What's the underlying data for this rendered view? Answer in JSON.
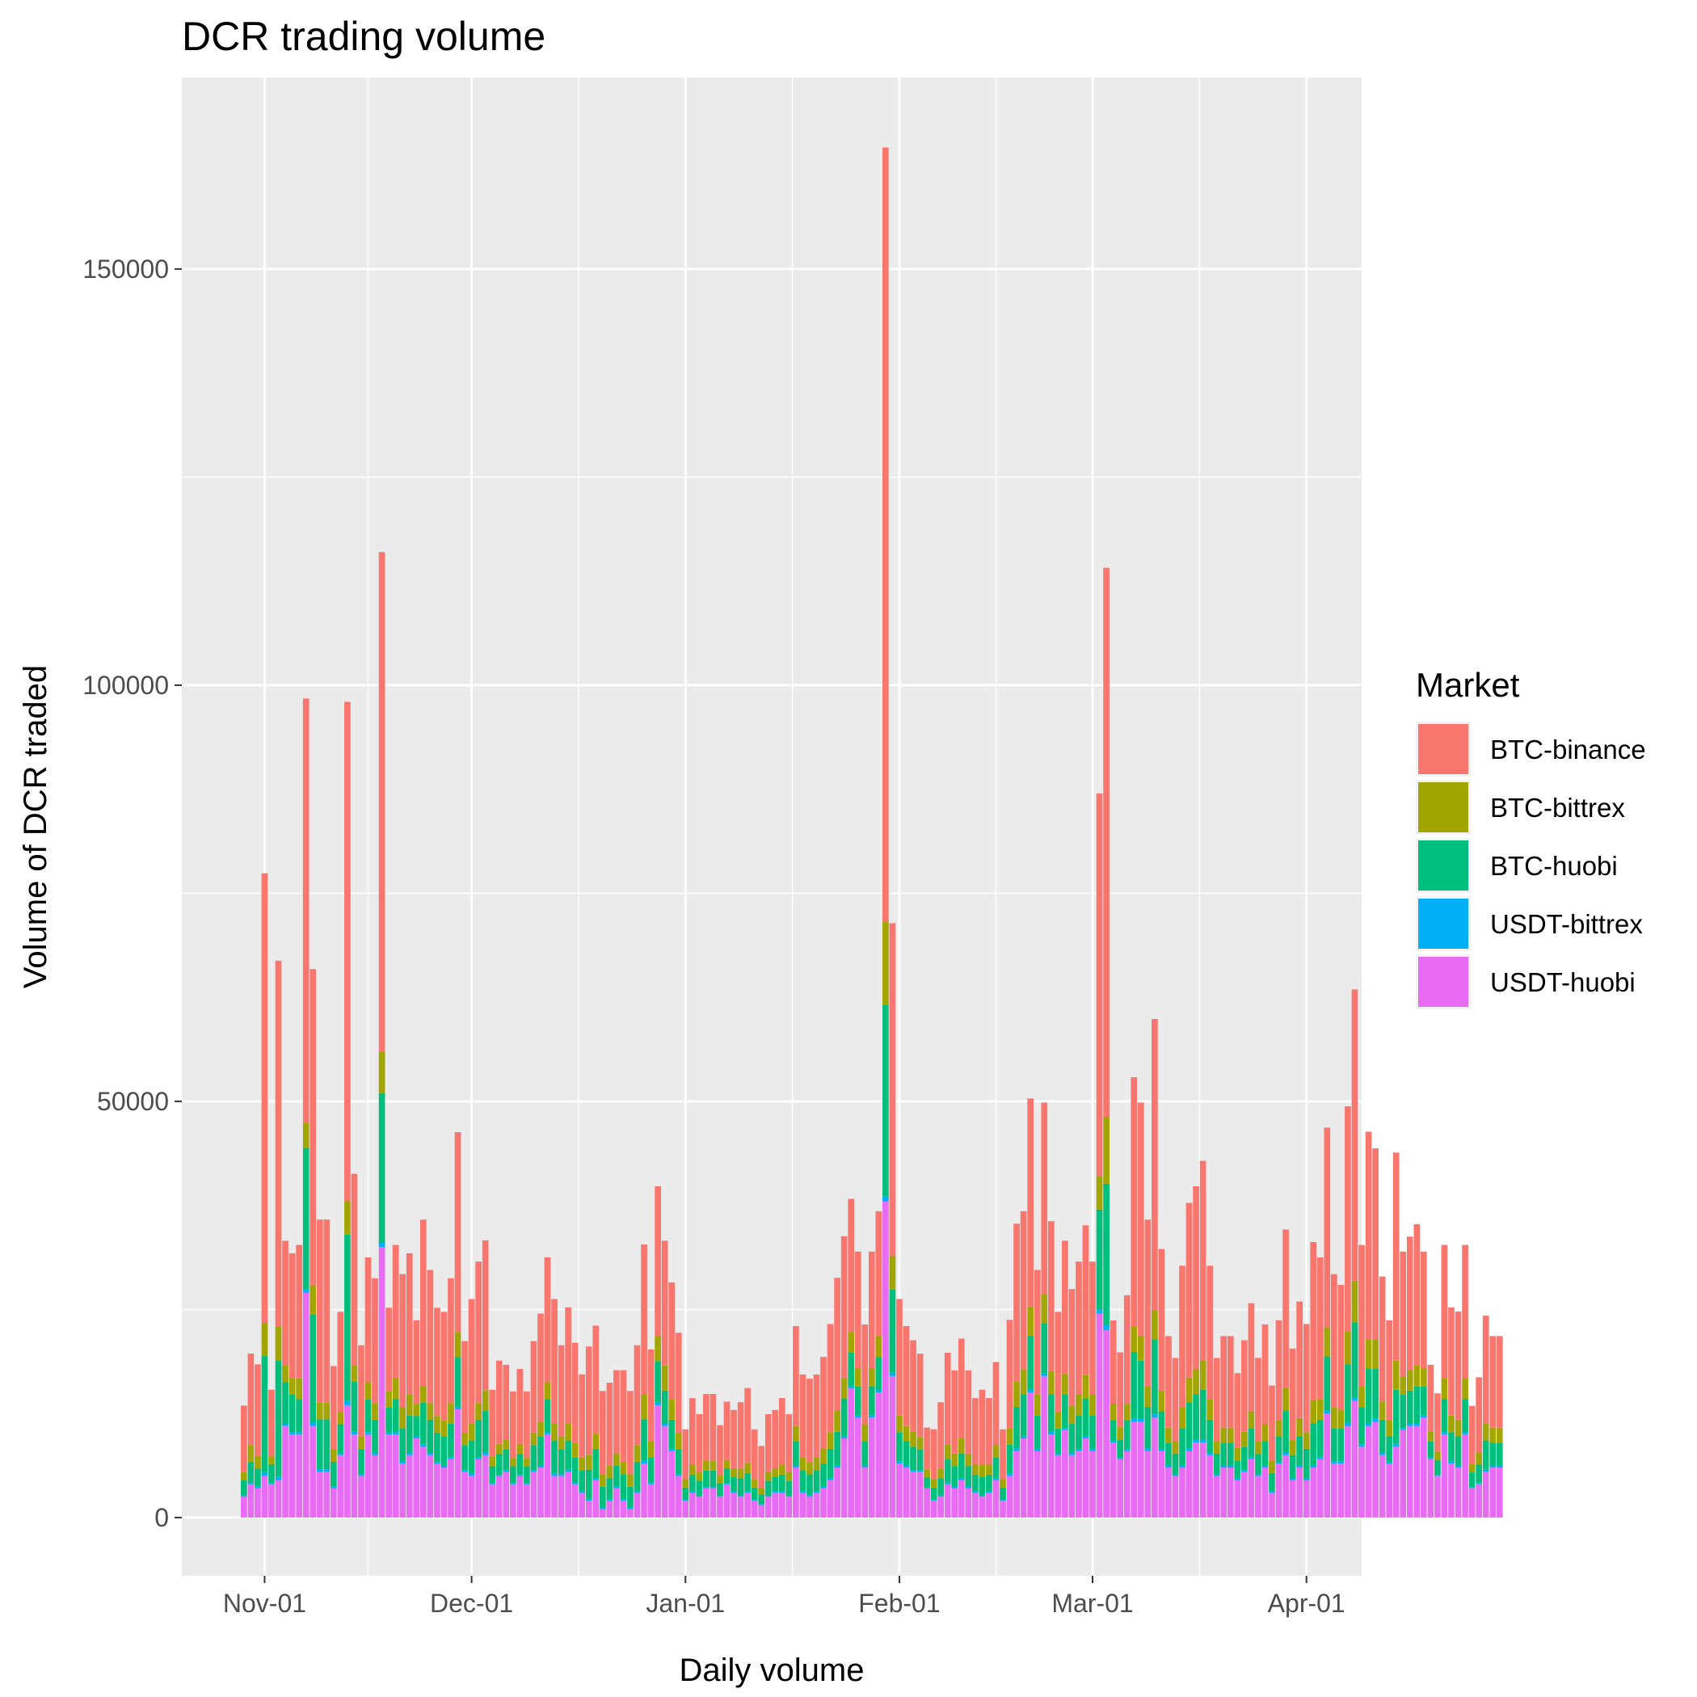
{
  "chart_data": {
    "type": "bar",
    "stacked": true,
    "title": "DCR trading volume",
    "xlabel": "Daily volume",
    "ylabel": "Volume of DCR traded",
    "x_range": [
      "2018-10-20",
      "2019-04-09"
    ],
    "ylim": [
      -7000,
      173000
    ],
    "y_ticks": [
      0,
      50000,
      100000,
      150000
    ],
    "y_tick_labels": [
      "0",
      "50000",
      "100000",
      "150000"
    ],
    "x_ticks": [
      "2018-11-01",
      "2018-12-01",
      "2019-01-01",
      "2019-02-01",
      "2019-03-01",
      "2019-04-01"
    ],
    "x_tick_labels": [
      "Nov-01",
      "Dec-01",
      "Jan-01",
      "Feb-01",
      "Mar-01",
      "Apr-01"
    ],
    "grid": true,
    "background": "#ebebeb",
    "legend": {
      "title": "Market",
      "position": "right"
    },
    "start_date": "2018-10-29",
    "series": [
      {
        "name": "BTC-binance",
        "color": "#f8766d",
        "values": [
          8000,
          11000,
          11000,
          54000,
          8000,
          44000,
          15000,
          15000,
          16000,
          51000,
          38000,
          22000,
          22000,
          10000,
          12000,
          60000,
          23000,
          11000,
          15000,
          15000,
          60000,
          10000,
          16000,
          16000,
          17000,
          10000,
          20000,
          16000,
          13000,
          13000,
          15000,
          24000,
          11000,
          15000,
          17000,
          18000,
          8000,
          10000,
          9000,
          8000,
          9000,
          8000,
          11000,
          13000,
          15000,
          15000,
          11000,
          14000,
          12000,
          10000,
          13000,
          13000,
          10000,
          10000,
          10000,
          11000,
          10000,
          12000,
          18000,
          11000,
          18000,
          15000,
          14000,
          12000,
          6000,
          8000,
          7000,
          8000,
          8000,
          6000,
          7000,
          7000,
          8000,
          9000,
          6000,
          5000,
          7000,
          7000,
          8000,
          7000,
          12000,
          10000,
          10000,
          10000,
          11000,
          13000,
          16000,
          17000,
          16000,
          14000,
          12000,
          14000,
          15000,
          93000,
          40000,
          14000,
          12000,
          11000,
          10000,
          5000,
          6000,
          8000,
          11000,
          10000,
          12000,
          10000,
          8000,
          9000,
          8000,
          10000,
          6000,
          13000,
          19000,
          19000,
          25000,
          15000,
          23000,
          18000,
          12000,
          16000,
          14000,
          16000,
          18000,
          16000,
          46000,
          66000,
          10000,
          9000,
          13000,
          30000,
          28000,
          20000,
          35000,
          17000,
          11000,
          10000,
          17000,
          21000,
          22000,
          24000,
          16000,
          10000,
          11000,
          11000,
          9000,
          11000,
          13000,
          10000,
          12000,
          9000,
          12000,
          19000,
          11000,
          14000,
          13000,
          19000,
          17000,
          24000,
          16000,
          15000,
          27000,
          35000,
          17000,
          25000,
          23000,
          15000,
          12000,
          25000,
          15000,
          16000,
          17000,
          14000,
          8000,
          7000,
          16000,
          13000,
          13000,
          16000,
          7000,
          9000,
          13000,
          11000,
          11000
        ]
      },
      {
        "name": "BTC-bittrex",
        "color": "#a3a500",
        "values": [
          1000,
          2000,
          1500,
          4000,
          1000,
          4000,
          2000,
          2000,
          2500,
          3000,
          3500,
          2000,
          2000,
          1500,
          1500,
          4000,
          2000,
          1500,
          2000,
          2000,
          5000,
          2000,
          2500,
          2500,
          2500,
          1500,
          2000,
          2000,
          2000,
          2000,
          2500,
          3000,
          1500,
          2000,
          2000,
          2500,
          1200,
          1200,
          1200,
          1000,
          1200,
          1000,
          1500,
          1800,
          2000,
          2000,
          1500,
          2000,
          1800,
          1500,
          1800,
          1800,
          1500,
          1500,
          1500,
          1500,
          1500,
          2000,
          3000,
          2000,
          3000,
          3000,
          2500,
          2000,
          1000,
          1200,
          1000,
          1200,
          1200,
          1000,
          1000,
          1000,
          1200,
          1200,
          1000,
          800,
          1000,
          1000,
          1200,
          1000,
          1800,
          1500,
          1500,
          1500,
          1800,
          2000,
          2500,
          2500,
          2500,
          2200,
          2000,
          2200,
          2500,
          10000,
          4000,
          2000,
          1800,
          1800,
          1500,
          1000,
          1000,
          1200,
          1800,
          1500,
          1800,
          1500,
          1200,
          1500,
          1200,
          1500,
          1000,
          2000,
          3000,
          3000,
          3500,
          2500,
          3500,
          2800,
          2000,
          2500,
          2200,
          2500,
          2800,
          2500,
          4000,
          8000,
          2000,
          1500,
          2000,
          3000,
          3000,
          2500,
          3500,
          2500,
          1800,
          1500,
          2500,
          3000,
          3000,
          3500,
          2500,
          1500,
          1800,
          1800,
          1500,
          1800,
          2000,
          1500,
          2000,
          1500,
          2000,
          2800,
          1800,
          2200,
          2000,
          2800,
          2500,
          3500,
          2500,
          2200,
          4000,
          5000,
          2500,
          3500,
          3500,
          2200,
          2000,
          3500,
          2200,
          2500,
          2500,
          2200,
          1200,
          1000,
          2500,
          2000,
          2000,
          2500,
          1000,
          1500,
          2000,
          1800,
          1800
        ]
      },
      {
        "name": "BTC-huobi",
        "color": "#00bf7d",
        "values": [
          1800,
          2500,
          2200,
          14000,
          2200,
          14000,
          5000,
          4500,
          4000,
          17000,
          13000,
          6000,
          6000,
          3000,
          3500,
          20000,
          6000,
          3000,
          4000,
          4000,
          18000,
          3000,
          4000,
          4000,
          4500,
          2500,
          5000,
          4000,
          3500,
          3500,
          4000,
          6000,
          3000,
          4000,
          4500,
          5000,
          2000,
          2500,
          2500,
          2000,
          2500,
          2000,
          3000,
          3500,
          4000,
          4000,
          3000,
          3500,
          3000,
          2500,
          3500,
          3500,
          2500,
          2500,
          2500,
          3000,
          2500,
          3500,
          5000,
          3000,
          5000,
          4000,
          3500,
          3000,
          1500,
          2000,
          1800,
          2000,
          2000,
          1500,
          1800,
          1800,
          2000,
          2200,
          1500,
          1200,
          1800,
          1800,
          2000,
          1800,
          3000,
          2500,
          2500,
          2500,
          2800,
          3500,
          4000,
          4500,
          4000,
          3500,
          3000,
          3500,
          4000,
          23000,
          10000,
          3500,
          3000,
          2800,
          2500,
          1200,
          1500,
          2000,
          2800,
          2500,
          3000,
          2500,
          2000,
          2200,
          2000,
          2500,
          1500,
          3500,
          5000,
          5000,
          6500,
          4000,
          6000,
          4500,
          3000,
          4000,
          3500,
          4000,
          4500,
          4000,
          12000,
          17000,
          2500,
          2200,
          3500,
          8000,
          7000,
          5000,
          9000,
          4500,
          2800,
          2500,
          4500,
          5500,
          5500,
          6000,
          4000,
          2500,
          2800,
          2800,
          2200,
          2800,
          3500,
          2500,
          3000,
          2200,
          3000,
          5000,
          2800,
          3500,
          3500,
          5000,
          4500,
          6500,
          4000,
          4000,
          7000,
          9000,
          4500,
          6500,
          6000,
          4000,
          3000,
          6500,
          4000,
          4000,
          4500,
          3500,
          2000,
          1800,
          4000,
          3500,
          3500,
          4000,
          1800,
          2200,
          3500,
          2800,
          2800
        ]
      },
      {
        "name": "USDT-bittrex",
        "color": "#00b0f6",
        "values": [
          150,
          200,
          200,
          400,
          150,
          400,
          250,
          250,
          250,
          400,
          400,
          300,
          300,
          200,
          200,
          500,
          300,
          200,
          250,
          250,
          500,
          200,
          250,
          250,
          250,
          200,
          300,
          250,
          200,
          200,
          250,
          300,
          200,
          250,
          250,
          300,
          150,
          150,
          150,
          150,
          150,
          150,
          200,
          200,
          250,
          250,
          200,
          250,
          200,
          200,
          250,
          250,
          200,
          200,
          200,
          200,
          200,
          200,
          300,
          200,
          300,
          250,
          250,
          200,
          100,
          150,
          120,
          150,
          150,
          100,
          120,
          120,
          150,
          150,
          100,
          100,
          120,
          120,
          150,
          120,
          200,
          180,
          180,
          180,
          200,
          250,
          300,
          300,
          300,
          250,
          200,
          250,
          300,
          600,
          400,
          250,
          200,
          200,
          180,
          100,
          100,
          150,
          200,
          180,
          200,
          180,
          150,
          150,
          150,
          180,
          100,
          250,
          300,
          300,
          350,
          250,
          350,
          300,
          200,
          250,
          250,
          250,
          300,
          250,
          500,
          600,
          180,
          150,
          200,
          400,
          350,
          300,
          400,
          250,
          200,
          180,
          250,
          300,
          300,
          350,
          250,
          180,
          200,
          200,
          150,
          200,
          250,
          180,
          200,
          150,
          200,
          300,
          200,
          250,
          250,
          300,
          250,
          350,
          250,
          250,
          400,
          450,
          250,
          350,
          350,
          250,
          200,
          350,
          250,
          250,
          250,
          250,
          150,
          120,
          250,
          250,
          250,
          250,
          120,
          150,
          250,
          200,
          200
        ]
      },
      {
        "name": "USDT-huobi",
        "color": "#e76bf3",
        "values": [
          2500,
          4000,
          3500,
          5000,
          4000,
          4500,
          11000,
          10000,
          10000,
          27000,
          11000,
          5500,
          5500,
          3500,
          7500,
          13500,
          10000,
          5000,
          10000,
          7500,
          32500,
          10000,
          10000,
          6500,
          7500,
          9500,
          8500,
          7500,
          6500,
          6000,
          7000,
          13000,
          5500,
          5000,
          7000,
          7500,
          4000,
          5000,
          5500,
          4000,
          5000,
          4000,
          5500,
          6000,
          10000,
          5000,
          5000,
          5500,
          4000,
          3000,
          2000,
          4500,
          1000,
          2000,
          3500,
          2000,
          1000,
          3000,
          6500,
          4000,
          13500,
          11000,
          8000,
          5000,
          2000,
          3000,
          2500,
          3500,
          3500,
          2500,
          4000,
          3000,
          2500,
          3000,
          2000,
          1500,
          2500,
          3000,
          3000,
          2500,
          6000,
          3000,
          2500,
          3000,
          3500,
          4500,
          6000,
          9500,
          15500,
          12000,
          6000,
          12000,
          15000,
          38000,
          17000,
          6500,
          6000,
          5500,
          5500,
          3500,
          2000,
          2500,
          4000,
          3500,
          4500,
          3500,
          3000,
          2500,
          3000,
          4500,
          2000,
          5000,
          8000,
          9500,
          15000,
          8000,
          17000,
          10000,
          7500,
          10500,
          7500,
          8000,
          9500,
          8000,
          24500,
          22500,
          9000,
          7000,
          8000,
          11500,
          11500,
          8000,
          12000,
          8000,
          6000,
          5000,
          6000,
          8000,
          9000,
          9000,
          7500,
          5000,
          6000,
          6000,
          4500,
          5500,
          7000,
          5000,
          6000,
          3000,
          6500,
          7500,
          4500,
          6000,
          4500,
          6000,
          7000,
          12500,
          6500,
          6500,
          11000,
          14000,
          8500,
          11000,
          11500,
          7500,
          6500,
          8500,
          10500,
          11000,
          11000,
          12000,
          7000,
          5000,
          10000,
          6500,
          6000,
          10000,
          3500,
          4000,
          5500,
          6000,
          6000
        ]
      }
    ]
  }
}
